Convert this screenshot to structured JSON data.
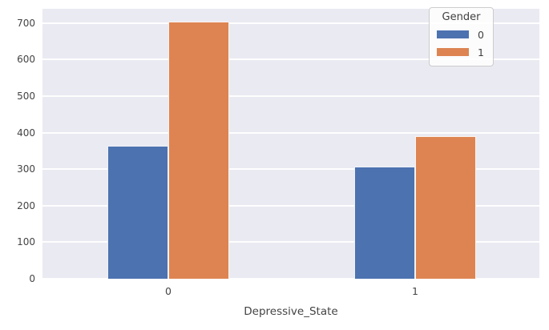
{
  "chart_data": {
    "type": "bar",
    "title": "",
    "xlabel": "Depressive_State",
    "ylabel": "",
    "categories": [
      "0",
      "1"
    ],
    "series": [
      {
        "name": "0",
        "color": "#4c72b0",
        "values": [
          363,
          307
        ]
      },
      {
        "name": "1",
        "color": "#dd8452",
        "values": [
          703,
          390
        ]
      }
    ],
    "ylim": [
      0,
      739
    ],
    "yticks": [
      0,
      100,
      200,
      300,
      400,
      500,
      600,
      700
    ],
    "legend": {
      "title": "Gender",
      "position": "upper right",
      "entries": [
        "0",
        "1"
      ]
    },
    "grid": "horizontal",
    "plot_bg": "#eaeaf2",
    "grid_color": "#ffffff",
    "text_color": "#444444"
  }
}
